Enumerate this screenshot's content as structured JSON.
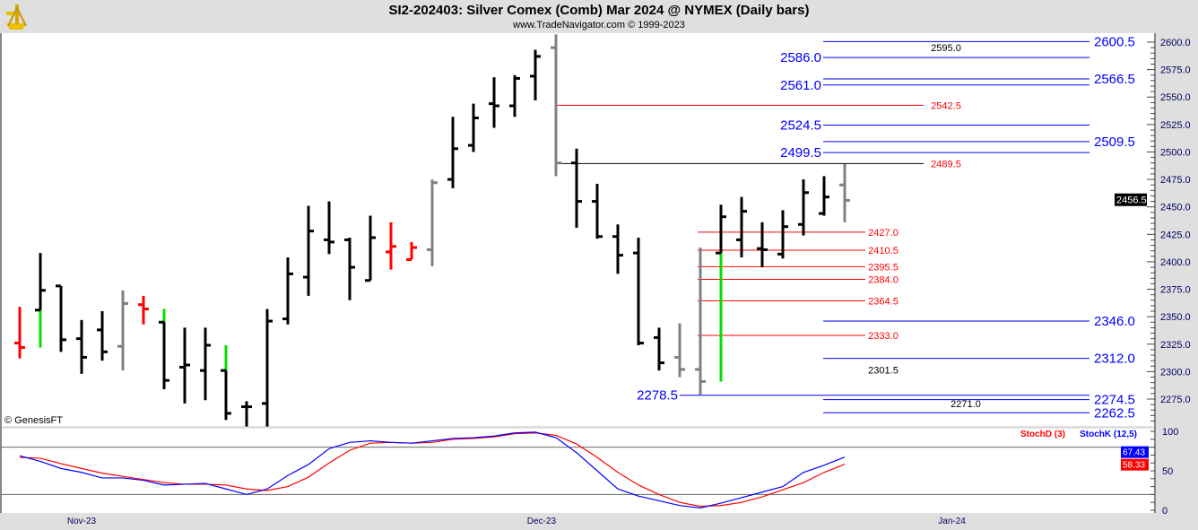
{
  "header": {
    "title": "SI2-202403:  Silver Comex (Comb) Mar 2024 @ NYMEX  (Daily bars)",
    "subtitle": "www.TradeNavigator.com © 1999-2023",
    "logo": "sextant-logo"
  },
  "watermark": "© GenesisFT",
  "colors": {
    "up": "#000000",
    "down": "#000000",
    "red": "#ff0000",
    "green": "#00e000",
    "gray": "#808080",
    "blue": "#0000ff"
  },
  "chart_data": [
    {
      "type": "ohlc",
      "title": "SI2-202403 Silver Comex (Comb) Mar 2024 Daily bars",
      "ylim": [
        2250,
        2610
      ],
      "yticks": [
        "2275.0",
        "2300.0",
        "2325.0",
        "2350.0",
        "2375.0",
        "2400.0",
        "2425.0",
        "2450.0",
        "2475.0",
        "2500.0",
        "2525.0",
        "2550.0",
        "2575.0",
        "2600.0"
      ],
      "last_price": "2456.5",
      "x_labels": [
        {
          "label": "Nov-23",
          "index": 3.0
        },
        {
          "label": "Dec-23",
          "index": 25.3
        },
        {
          "label": "Jan-24",
          "index": 45.2
        }
      ],
      "bars": [
        {
          "o": 2326,
          "h": 2359,
          "l": 2312,
          "c": 2322,
          "color": "red"
        },
        {
          "o": 2356,
          "h": 2408,
          "l": 2322,
          "c": 2374,
          "color": "green-low"
        },
        {
          "o": 2378,
          "h": 2378,
          "l": 2318,
          "c": 2329,
          "color": "black"
        },
        {
          "o": 2330,
          "h": 2347,
          "l": 2298,
          "c": 2313,
          "color": "black"
        },
        {
          "o": 2338,
          "h": 2355,
          "l": 2310,
          "c": 2318,
          "color": "black"
        },
        {
          "o": 2323,
          "h": 2374,
          "l": 2301,
          "c": 2362,
          "color": "gray"
        },
        {
          "o": 2361,
          "h": 2369,
          "l": 2343,
          "c": 2357,
          "color": "red"
        },
        {
          "o": 2345,
          "h": 2357,
          "l": 2284,
          "c": 2292,
          "color": "green-high"
        },
        {
          "o": 2304,
          "h": 2340,
          "l": 2271,
          "c": 2306,
          "color": "black"
        },
        {
          "o": 2301,
          "h": 2340,
          "l": 2274,
          "c": 2324,
          "color": "black"
        },
        {
          "o": 2301,
          "h": 2324,
          "l": 2256,
          "c": 2262,
          "color": "green-high"
        },
        {
          "o": 2268,
          "h": 2273,
          "l": 2250,
          "c": 2268,
          "color": "black"
        },
        {
          "o": 2271,
          "h": 2357,
          "l": 2250,
          "c": 2346,
          "color": "black"
        },
        {
          "o": 2348,
          "h": 2404,
          "l": 2343,
          "c": 2389,
          "color": "black"
        },
        {
          "o": 2386,
          "h": 2451,
          "l": 2369,
          "c": 2428,
          "color": "black"
        },
        {
          "o": 2420,
          "h": 2455,
          "l": 2407,
          "c": 2418,
          "color": "black"
        },
        {
          "o": 2420,
          "h": 2422,
          "l": 2365,
          "c": 2395,
          "color": "black"
        },
        {
          "o": 2383,
          "h": 2442,
          "l": 2383,
          "c": 2422,
          "color": "black"
        },
        {
          "o": 2409,
          "h": 2436,
          "l": 2393,
          "c": 2414,
          "color": "red"
        },
        {
          "o": 2402,
          "h": 2418,
          "l": 2402,
          "c": 2413,
          "color": "red"
        },
        {
          "o": 2411,
          "h": 2475,
          "l": 2396,
          "c": 2472,
          "color": "gray"
        },
        {
          "o": 2475,
          "h": 2532,
          "l": 2467,
          "c": 2503,
          "color": "black"
        },
        {
          "o": 2506,
          "h": 2544,
          "l": 2500,
          "c": 2531,
          "color": "black"
        },
        {
          "o": 2544,
          "h": 2568,
          "l": 2522,
          "c": 2542,
          "color": "black"
        },
        {
          "o": 2542,
          "h": 2570,
          "l": 2532,
          "c": 2567,
          "color": "black"
        },
        {
          "o": 2569,
          "h": 2593,
          "l": 2547,
          "c": 2587,
          "color": "black"
        },
        {
          "o": 2595,
          "h": 2607,
          "l": 2478,
          "c": 2490,
          "color": "gray"
        },
        {
          "o": 2490,
          "h": 2503,
          "l": 2431,
          "c": 2455,
          "color": "black"
        },
        {
          "o": 2455,
          "h": 2471,
          "l": 2421,
          "c": 2423,
          "color": "black"
        },
        {
          "o": 2423,
          "h": 2434,
          "l": 2389,
          "c": 2406,
          "color": "black"
        },
        {
          "o": 2408,
          "h": 2422,
          "l": 2324,
          "c": 2326,
          "color": "black"
        },
        {
          "o": 2331,
          "h": 2340,
          "l": 2301,
          "c": 2308,
          "color": "black"
        },
        {
          "o": 2313,
          "h": 2344,
          "l": 2295,
          "c": 2302,
          "color": "gray"
        },
        {
          "o": 2302,
          "h": 2413,
          "l": 2279,
          "c": 2291,
          "color": "gray"
        },
        {
          "o": 2408,
          "h": 2452,
          "l": 2291,
          "c": 2441,
          "color": "green-low"
        },
        {
          "o": 2420,
          "h": 2459,
          "l": 2404,
          "c": 2446,
          "color": "black"
        },
        {
          "o": 2412,
          "h": 2436,
          "l": 2395,
          "c": 2411,
          "color": "black"
        },
        {
          "o": 2407,
          "h": 2447,
          "l": 2403,
          "c": 2432,
          "color": "black"
        },
        {
          "o": 2434,
          "h": 2475,
          "l": 2424,
          "c": 2463,
          "color": "black"
        },
        {
          "o": 2444,
          "h": 2478,
          "l": 2442,
          "c": 2459,
          "color": "black"
        },
        {
          "o": 2470,
          "h": 2489,
          "l": 2436,
          "c": 2456,
          "color": "gray"
        }
      ],
      "levels": [
        {
          "value": 2600.5,
          "label": "2600.5",
          "color": "blue",
          "label_pos": "right"
        },
        {
          "value": 2595.0,
          "label": "2595.0",
          "color": "black",
          "label_pos": "mid"
        },
        {
          "value": 2586.0,
          "label": "2586.0",
          "color": "blue",
          "label_pos": "left"
        },
        {
          "value": 2566.5,
          "label": "2566.5",
          "color": "blue",
          "label_pos": "right"
        },
        {
          "value": 2561.0,
          "label": "2561.0",
          "color": "blue",
          "label_pos": "left"
        },
        {
          "value": 2542.5,
          "label": "2542.5",
          "color": "red",
          "label_pos": "mid"
        },
        {
          "value": 2524.5,
          "label": "2524.5",
          "color": "blue",
          "label_pos": "left"
        },
        {
          "value": 2509.5,
          "label": "2509.5",
          "color": "blue",
          "label_pos": "right"
        },
        {
          "value": 2499.5,
          "label": "2499.5",
          "color": "blue",
          "label_pos": "left"
        },
        {
          "value": 2489.5,
          "label": "2489.5",
          "color": "red",
          "label_pos": "mid"
        },
        {
          "value": 2427.0,
          "label": "2427.0",
          "color": "red",
          "label_pos": "low"
        },
        {
          "value": 2410.5,
          "label": "2410.5",
          "color": "red",
          "label_pos": "low"
        },
        {
          "value": 2395.5,
          "label": "2395.5",
          "color": "red",
          "label_pos": "low"
        },
        {
          "value": 2384.0,
          "label": "2384.0",
          "color": "red",
          "label_pos": "low"
        },
        {
          "value": 2364.5,
          "label": "2364.5",
          "color": "red",
          "label_pos": "low"
        },
        {
          "value": 2346.0,
          "label": "2346.0",
          "color": "blue",
          "label_pos": "right"
        },
        {
          "value": 2333.0,
          "label": "2333.0",
          "color": "red",
          "label_pos": "low"
        },
        {
          "value": 2312.0,
          "label": "2312.0",
          "color": "blue",
          "label_pos": "right"
        },
        {
          "value": 2301.5,
          "label": "2301.5",
          "color": "black",
          "label_pos": "low"
        },
        {
          "value": 2278.5,
          "label": "2278.5",
          "color": "blue",
          "label_pos": "far-left"
        },
        {
          "value": 2274.5,
          "label": "2274.5",
          "color": "blue",
          "label_pos": "right"
        },
        {
          "value": 2271.0,
          "label": "2271.0",
          "color": "black",
          "label_pos": "long"
        },
        {
          "value": 2262.5,
          "label": "2262.5",
          "color": "blue",
          "label_pos": "right"
        }
      ]
    },
    {
      "type": "line",
      "title": "Stochastic",
      "ylim": [
        0,
        100
      ],
      "yticks": [
        "100",
        "50",
        "0"
      ],
      "grid": [
        20,
        80
      ],
      "series": [
        {
          "name": "StochD (3)",
          "color": "red",
          "last": "58.33",
          "values": [
            67,
            66,
            59,
            53,
            47,
            43,
            39,
            35,
            33,
            33,
            32,
            27,
            25,
            30,
            42,
            60,
            76,
            85,
            86,
            85,
            86,
            90,
            91,
            93,
            97,
            98,
            95,
            84,
            67,
            48,
            32,
            20,
            10,
            5,
            6,
            10,
            17,
            26,
            35,
            48,
            58.33
          ]
        },
        {
          "name": "StochK (12,5)",
          "color": "blue",
          "last": "67.43",
          "values": [
            69,
            62,
            53,
            48,
            41,
            41,
            38,
            32,
            33,
            34,
            27,
            20,
            27,
            44,
            58,
            78,
            86,
            88,
            86,
            85,
            88,
            91,
            92,
            94,
            98,
            99,
            92,
            73,
            50,
            27,
            18,
            12,
            6,
            3,
            9,
            16,
            23,
            30,
            48,
            57,
            67.43
          ]
        }
      ]
    }
  ]
}
